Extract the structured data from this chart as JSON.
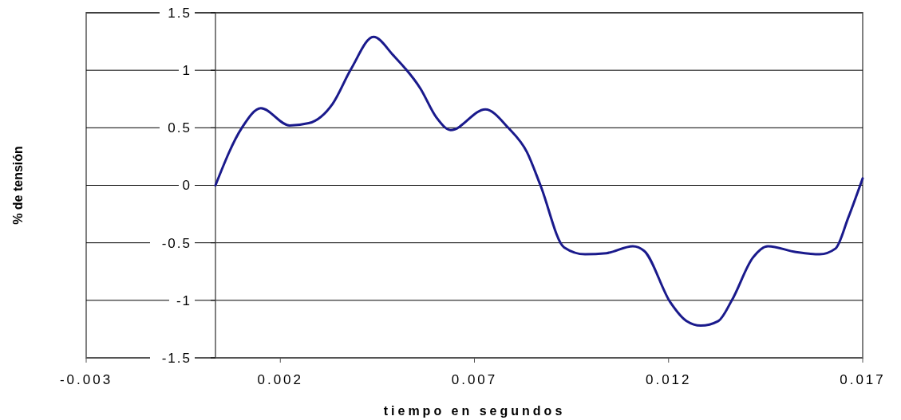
{
  "chart_data": {
    "type": "line",
    "xlabel": "tiempo en segundos",
    "ylabel": "% de tensión",
    "x": [
      0.00033,
      0.00101,
      0.0015,
      0.00224,
      0.00273,
      0.00335,
      0.00382,
      0.0044,
      0.00491,
      0.00561,
      0.00602,
      0.00639,
      0.00728,
      0.00787,
      0.00835,
      0.0087,
      0.00931,
      0.00985,
      0.0104,
      0.01108,
      0.01137,
      0.01205,
      0.01246,
      0.01283,
      0.01328,
      0.01363,
      0.01417,
      0.01456,
      0.01528,
      0.01589,
      0.0163,
      0.01663,
      0.017
    ],
    "series": [
      {
        "color": "#1a1a8c",
        "values": [
          0,
          0.5,
          0.67,
          0.52,
          0.54,
          0.71,
          1.01,
          1.29,
          1.13,
          0.84,
          0.59,
          0.48,
          0.66,
          0.5,
          0.29,
          0,
          -0.54,
          -0.6,
          -0.59,
          -0.53,
          -0.57,
          -1.02,
          -1.18,
          -1.22,
          -1.18,
          -1,
          -0.63,
          -0.53,
          -0.58,
          -0.6,
          -0.55,
          -0.28,
          0.06
        ]
      }
    ],
    "xlim": [
      -0.003,
      0.017
    ],
    "xticks": [
      -0.003,
      0.002,
      0.007,
      0.012,
      0.017
    ],
    "ylim": [
      -1.5,
      1.5
    ],
    "yticks": [
      -1.5,
      -1,
      -0.5,
      0,
      0.5,
      1,
      1.5
    ],
    "grid": "y",
    "marker": "none",
    "line_style": "solid"
  }
}
